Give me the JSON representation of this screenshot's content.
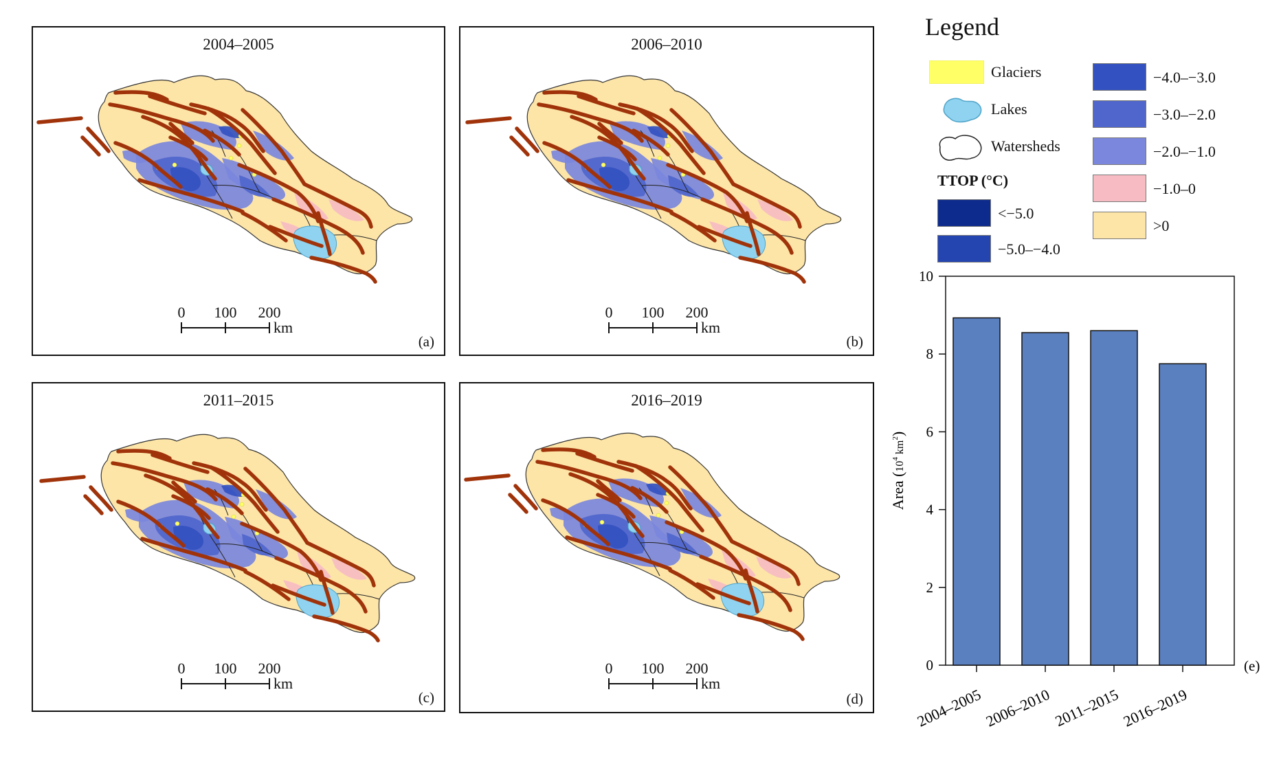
{
  "legend": {
    "title": "Legend",
    "items": [
      {
        "label": "Glaciers",
        "icon": "glacier-swatch",
        "color": "#ffff66"
      },
      {
        "label": "Lakes",
        "icon": "lake-shape",
        "color": "#8fd3f0"
      },
      {
        "label": "Watersheds",
        "icon": "watershed-outline"
      }
    ],
    "ttop_heading": "TTOP (°C)",
    "classes": [
      {
        "label": "<−5.0",
        "color": "#0d2b8c"
      },
      {
        "label": "−5.0–−4.0",
        "color": "#2444b0"
      },
      {
        "label": "−4.0–−3.0",
        "color": "#3351c0"
      },
      {
        "label": "−3.0–−2.0",
        "color": "#5066cc"
      },
      {
        "label": "−2.0–−1.0",
        "color": "#7b87dc"
      },
      {
        "label": "−1.0–0",
        "color": "#f7bcc3"
      },
      {
        "label": ">0",
        "color": "#fde5a8"
      }
    ]
  },
  "maps": [
    {
      "title": "2004–2005",
      "letter": "(a)"
    },
    {
      "title": "2006–2010",
      "letter": "(b)"
    },
    {
      "title": "2011–2015",
      "letter": "(c)"
    },
    {
      "title": "2016–2019",
      "letter": "(d)"
    }
  ],
  "scale_bar": {
    "ticks": [
      "0",
      "100",
      "200"
    ],
    "unit": "km"
  },
  "colors": {
    "fault": "#a0330a",
    "bar": "#5b80bf",
    "boundary": "#222222"
  },
  "chart_data": {
    "type": "bar",
    "categories": [
      "2004–2005",
      "2006–2010",
      "2011–2015",
      "2016–2019"
    ],
    "values": [
      8.93,
      8.55,
      8.6,
      7.75
    ],
    "ylabel_main": "Area (",
    "ylabel_base": "10",
    "ylabel_exp": "4",
    "ylabel_unit": "km",
    "ylabel_unit_exp": "2",
    "ylabel_close": ")",
    "ylim": [
      0,
      10
    ],
    "yticks": [
      "0",
      "2",
      "4",
      "6",
      "8",
      "10"
    ],
    "panel_letter": "(e)",
    "grid": false
  }
}
